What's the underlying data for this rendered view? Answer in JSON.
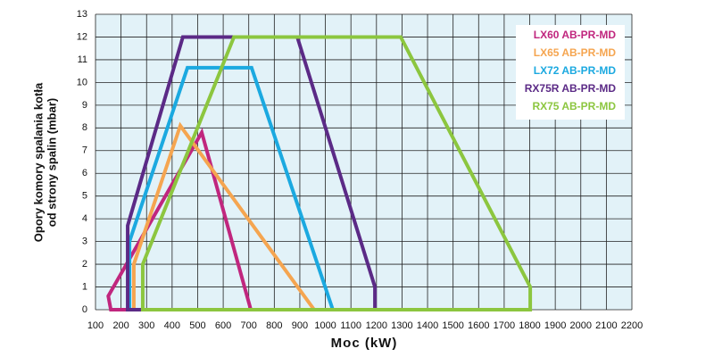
{
  "chart_data": {
    "type": "polygon",
    "xlabel": "Moc (kW)",
    "ylabel": [
      "Opory komory spalania kotła",
      "od strony spalin (mbar)"
    ],
    "xlim": [
      100,
      2200
    ],
    "xticks": [
      100,
      200,
      300,
      400,
      500,
      600,
      700,
      800,
      900,
      1000,
      1100,
      1200,
      1300,
      1400,
      1500,
      1600,
      1700,
      1800,
      1900,
      2000,
      2100,
      2200
    ],
    "ylim": [
      0,
      13
    ],
    "yticks": [
      0,
      1,
      2,
      3,
      4,
      5,
      6,
      7,
      8,
      9,
      10,
      11,
      12,
      13
    ],
    "grid": true,
    "legend": "upper right",
    "series": [
      {
        "name": "LX60 AB-PR-MD",
        "color": "#c0267e",
        "x": [
          160,
          150,
          516,
          708
        ],
        "values": [
          0,
          0.6,
          7.8,
          0
        ]
      },
      {
        "name": "LX65 AB-PR-MD",
        "color": "#f5a550",
        "x": [
          250,
          250,
          432,
          956
        ],
        "values": [
          0,
          2,
          8.1,
          0
        ]
      },
      {
        "name": "LX72 AB-PR-MD",
        "color": "#1ba9e0",
        "x": [
          233,
          233,
          460,
          711,
          1029
        ],
        "values": [
          0,
          3,
          10.65,
          10.65,
          0
        ]
      },
      {
        "name": "RX75R AB-PR-MD",
        "color": "#5b2a86",
        "x": [
          226,
          226,
          442,
          890,
          1194,
          1194
        ],
        "values": [
          0,
          3.7,
          12,
          12,
          1,
          0
        ]
      },
      {
        "name": "RX75 AB-PR-MD",
        "color": "#8cc63f",
        "x": [
          285,
          285,
          642,
          1295,
          1802,
          1802
        ],
        "values": [
          0,
          2,
          12,
          12,
          1,
          0
        ]
      }
    ]
  }
}
